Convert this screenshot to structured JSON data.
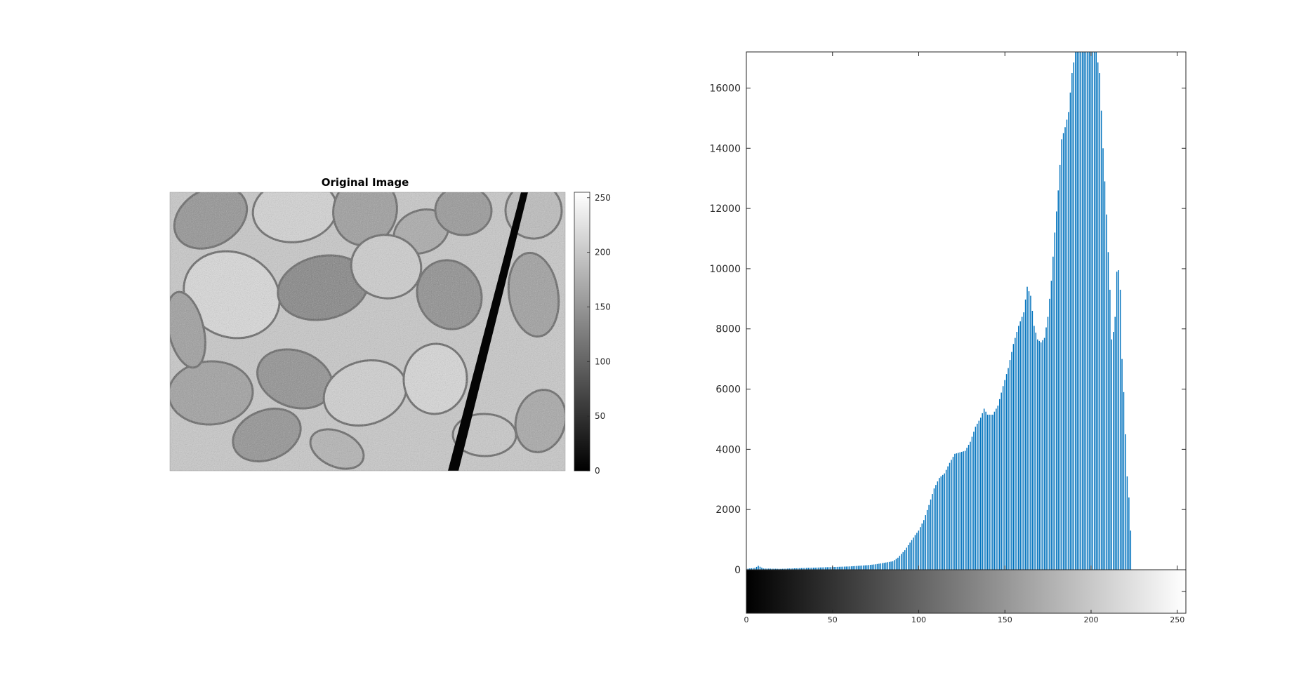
{
  "figure": {
    "left_title": "Original Image"
  },
  "colors": {
    "bar": "#0072BD",
    "axis": "#262626"
  },
  "chart_data": [
    {
      "type": "heatmap",
      "title": "Original Image",
      "colormap": "gray",
      "colorbar_ticks": [
        0,
        50,
        100,
        150,
        200,
        250
      ],
      "colorbar_range": [
        0,
        255
      ]
    },
    {
      "type": "bar",
      "title": "",
      "xlabel": "",
      "ylabel": "",
      "xlim": [
        0,
        255
      ],
      "ylim": [
        0,
        17200
      ],
      "yticks": [
        0,
        2000,
        4000,
        6000,
        8000,
        10000,
        12000,
        14000,
        16000
      ],
      "xticks": [
        0,
        50,
        100,
        150,
        200,
        250
      ],
      "grid": false,
      "colorbar_below": "gray",
      "anchors": [
        [
          0,
          30
        ],
        [
          5,
          60
        ],
        [
          7,
          130
        ],
        [
          10,
          40
        ],
        [
          20,
          30
        ],
        [
          30,
          50
        ],
        [
          40,
          70
        ],
        [
          50,
          90
        ],
        [
          60,
          110
        ],
        [
          70,
          150
        ],
        [
          75,
          180
        ],
        [
          80,
          230
        ],
        [
          85,
          280
        ],
        [
          88,
          400
        ],
        [
          92,
          650
        ],
        [
          95,
          900
        ],
        [
          98,
          1150
        ],
        [
          100,
          1300
        ],
        [
          103,
          1650
        ],
        [
          106,
          2150
        ],
        [
          109,
          2700
        ],
        [
          112,
          3050
        ],
        [
          115,
          3200
        ],
        [
          118,
          3550
        ],
        [
          121,
          3850
        ],
        [
          124,
          3900
        ],
        [
          127,
          3950
        ],
        [
          130,
          4250
        ],
        [
          133,
          4750
        ],
        [
          136,
          5050
        ],
        [
          138,
          5350
        ],
        [
          140,
          5150
        ],
        [
          143,
          5150
        ],
        [
          146,
          5450
        ],
        [
          149,
          6100
        ],
        [
          152,
          6700
        ],
        [
          155,
          7500
        ],
        [
          158,
          8100
        ],
        [
          161,
          8550
        ],
        [
          163,
          9400
        ],
        [
          165,
          9100
        ],
        [
          167,
          8100
        ],
        [
          169,
          7650
        ],
        [
          171,
          7550
        ],
        [
          173,
          7700
        ],
        [
          175,
          8400
        ],
        [
          177,
          9600
        ],
        [
          179,
          11200
        ],
        [
          181,
          12600
        ],
        [
          183,
          14300
        ],
        [
          185,
          14700
        ],
        [
          187,
          15200
        ],
        [
          189,
          16500
        ],
        [
          191,
          17200
        ],
        [
          193,
          17200
        ],
        [
          195,
          17200
        ],
        [
          197,
          17200
        ],
        [
          199,
          17200
        ],
        [
          201,
          17200
        ],
        [
          203,
          17200
        ],
        [
          205,
          16500
        ],
        [
          207,
          14000
        ],
        [
          209,
          11800
        ],
        [
          211,
          9300
        ],
        [
          212,
          7650
        ],
        [
          213,
          7900
        ],
        [
          214,
          8400
        ],
        [
          215,
          9900
        ],
        [
          216,
          9950
        ],
        [
          217,
          9300
        ],
        [
          218,
          7000
        ],
        [
          219,
          5900
        ],
        [
          220,
          4500
        ],
        [
          221,
          3100
        ],
        [
          222,
          2400
        ],
        [
          223,
          1300
        ],
        [
          224,
          0
        ],
        [
          255,
          0
        ]
      ]
    }
  ]
}
